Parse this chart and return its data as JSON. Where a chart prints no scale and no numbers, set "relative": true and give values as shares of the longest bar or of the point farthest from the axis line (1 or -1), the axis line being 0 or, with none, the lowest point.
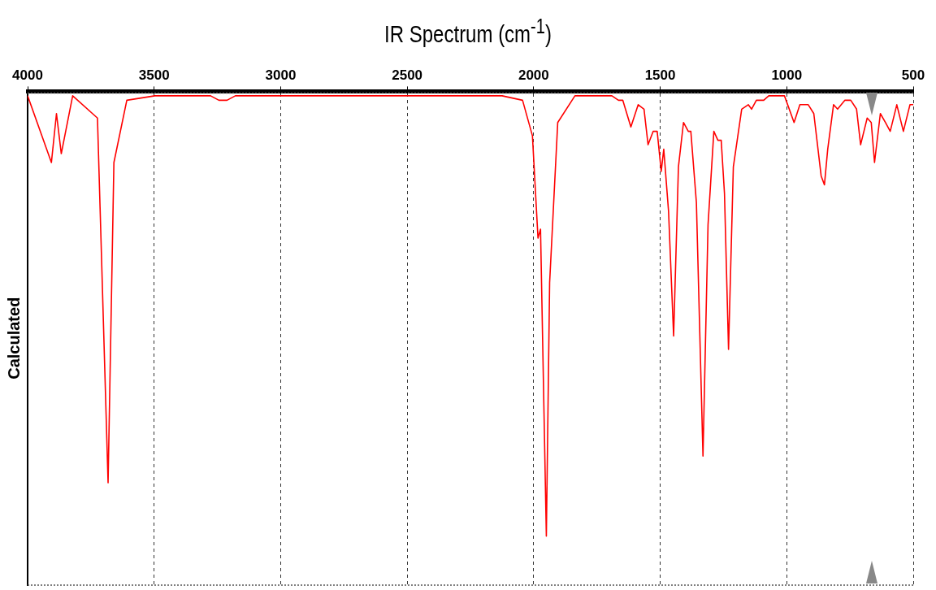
{
  "chart_data": {
    "type": "line",
    "title": "IR Spectrum (cm$^{-1}$)",
    "ylabel": "Calculated",
    "relative": true,
    "grid": "x",
    "legend": false,
    "marker": "none",
    "xlim": [
      4000,
      500
    ],
    "xticks": [
      4000,
      3500,
      3000,
      2500,
      2000,
      1500,
      1000,
      500
    ],
    "series": [
      {
        "color": "#ff0000",
        "x": [
          4000,
          3906,
          3886,
          3867,
          3822,
          3724,
          3682,
          3659,
          3608,
          3497,
          3277,
          3244,
          3212,
          3179,
          2125,
          2044,
          2005,
          1983,
          1973,
          1950,
          1937,
          1905,
          1837,
          1691,
          1665,
          1648,
          1616,
          1587,
          1564,
          1548,
          1528,
          1512,
          1496,
          1486,
          1467,
          1447,
          1428,
          1408,
          1389,
          1379,
          1357,
          1331,
          1311,
          1288,
          1272,
          1259,
          1246,
          1230,
          1211,
          1178,
          1152,
          1139,
          1120,
          1091,
          1071,
          1009,
          971,
          948,
          915,
          893,
          864,
          851,
          838,
          815,
          799,
          770,
          747,
          724,
          708,
          682,
          666,
          653,
          630,
          610,
          591,
          565,
          539,
          513,
          500
        ],
        "values": [
          -0.01,
          -0.16,
          -0.05,
          -0.14,
          -0.01,
          -0.06,
          -0.88,
          -0.16,
          -0.02,
          -0.01,
          -0.01,
          -0.02,
          -0.02,
          -0.01,
          -0.01,
          -0.02,
          -0.1,
          -0.33,
          -0.31,
          -1,
          -0.43,
          -0.07,
          -0.01,
          -0.01,
          -0.02,
          -0.02,
          -0.08,
          -0.03,
          -0.04,
          -0.12,
          -0.09,
          -0.09,
          -0.18,
          -0.13,
          -0.27,
          -0.55,
          -0.17,
          -0.07,
          -0.09,
          -0.09,
          -0.25,
          -0.82,
          -0.3,
          -0.09,
          -0.11,
          -0.11,
          -0.23,
          -0.58,
          -0.17,
          -0.04,
          -0.03,
          -0.04,
          -0.02,
          -0.02,
          -0.01,
          -0.01,
          -0.07,
          -0.03,
          -0.03,
          -0.05,
          -0.19,
          -0.21,
          -0.13,
          -0.03,
          -0.04,
          -0.02,
          -0.02,
          -0.04,
          -0.12,
          -0.06,
          -0.07,
          -0.16,
          -0.05,
          -0.07,
          -0.09,
          -0.03,
          -0.09,
          -0.03,
          -0.03
        ]
      }
    ]
  }
}
